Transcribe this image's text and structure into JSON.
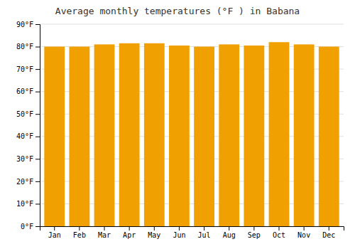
{
  "chart_data": {
    "type": "bar",
    "title": "Average monthly temperatures (°F ) in Babana",
    "categories": [
      "Jan",
      "Feb",
      "Mar",
      "Apr",
      "May",
      "Jun",
      "Jul",
      "Aug",
      "Sep",
      "Oct",
      "Nov",
      "Dec"
    ],
    "values": [
      80,
      80,
      81,
      81.5,
      81.5,
      80.5,
      80,
      81,
      80.5,
      82,
      81,
      80
    ],
    "color": "#F0A000",
    "ylim": [
      0,
      90
    ],
    "yticks": [
      {
        "value": 0,
        "label": "0°F"
      },
      {
        "value": 10,
        "label": "10°F"
      },
      {
        "value": 20,
        "label": "20°F"
      },
      {
        "value": 30,
        "label": "30°F"
      },
      {
        "value": 40,
        "label": "40°F"
      },
      {
        "value": 50,
        "label": "50°F"
      },
      {
        "value": 60,
        "label": "60°F"
      },
      {
        "value": 70,
        "label": "70°F"
      },
      {
        "value": 80,
        "label": "80°F"
      },
      {
        "value": 90,
        "label": "90°F"
      }
    ],
    "grid": true
  }
}
